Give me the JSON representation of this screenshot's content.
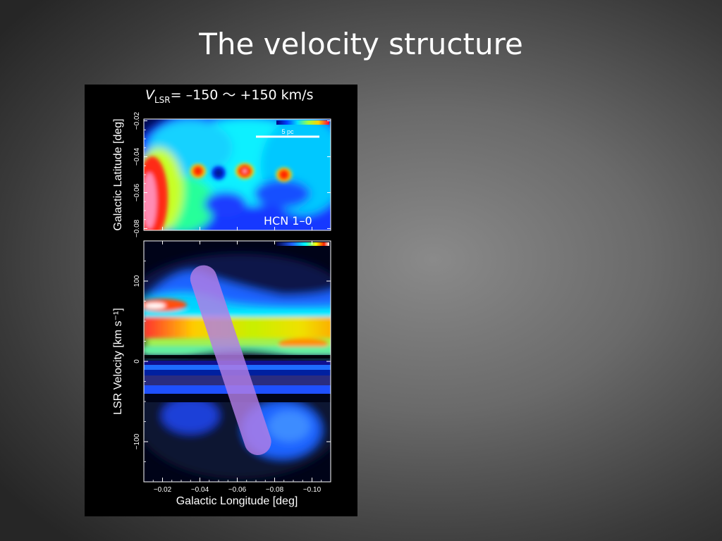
{
  "slide": {
    "title": "The velocity structure"
  },
  "figure": {
    "header": {
      "v_symbol": "V",
      "v_subscript": "LSR",
      "range_text": "= –150 〜 +150 km/s"
    },
    "map_label": "HCN 1–0",
    "scalebar_label": "5 pc"
  },
  "chart_data": [
    {
      "type": "heatmap",
      "panel": "top",
      "title": "",
      "xlabel": "",
      "ylabel": "Galactic Latitude  [deg]",
      "ylim": [
        -0.081,
        -0.019
      ],
      "yticks": [
        -0.02,
        -0.04,
        -0.06,
        -0.08
      ],
      "ytick_labels": [
        "−0.02",
        "−0.04",
        "−0.06",
        "−0.08"
      ],
      "colormap": "rainbow",
      "colorbar_placement": "top-right",
      "annotations": [
        "HCN 1–0",
        "5 pc"
      ],
      "peaks": [
        {
          "l": -0.039,
          "b": -0.048,
          "level": "high"
        },
        {
          "l": -0.05,
          "b": -0.049,
          "level": "low"
        },
        {
          "l": -0.064,
          "b": -0.048,
          "level": "peak"
        },
        {
          "l": -0.085,
          "b": -0.05,
          "level": "high"
        }
      ]
    },
    {
      "type": "heatmap",
      "panel": "bottom",
      "title": "",
      "xlabel": "Galactic Longitude  [deg]",
      "ylabel": "LSR Velocity  [km s⁻¹]",
      "xlim": [
        -0.01,
        -0.11
      ],
      "ylim": [
        -150,
        150
      ],
      "xticks": [
        -0.02,
        -0.04,
        -0.06,
        -0.08,
        -0.1
      ],
      "xtick_labels": [
        "−0.02",
        "−0.04",
        "−0.06",
        "−0.08",
        "−0.10"
      ],
      "yticks": [
        100,
        0,
        -100
      ],
      "ytick_labels": [
        "100",
        "0",
        "−100"
      ],
      "colormap": "rainbow",
      "colorbar_placement": "top-right",
      "overlay": {
        "shape": "band",
        "color": "#b27ee6",
        "start": {
          "l": -0.042,
          "v": 103
        },
        "end": {
          "l": -0.071,
          "v": -100
        }
      }
    }
  ]
}
